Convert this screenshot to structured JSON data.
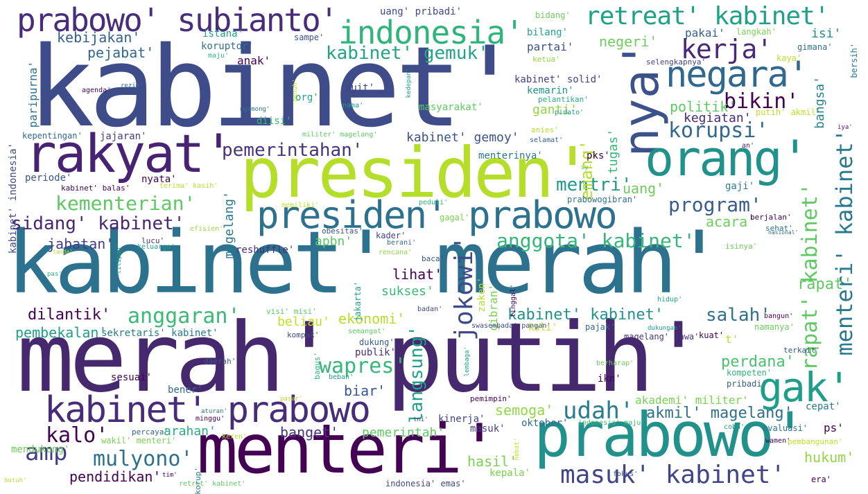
{
  "words": [
    {
      "text": "kabinet'",
      "color": "#3f4c8a"
    },
    {
      "text": "merah' putih'",
      "color": "#46286e"
    },
    {
      "text": "kabinet' merah'",
      "color": "#2c728e"
    },
    {
      "text": "presiden'",
      "color": "#b5de2b"
    },
    {
      "text": "menteri'",
      "color": "#440154"
    },
    {
      "text": "prabowo'",
      "color": "#21918c"
    },
    {
      "text": "rakyat'",
      "color": "#482374"
    },
    {
      "text": "prabowo' subianto'",
      "color": "#472d7b"
    },
    {
      "text": "indonesia'",
      "color": "#2fb47c"
    },
    {
      "text": "nya'",
      "color": "#3b528b"
    },
    {
      "text": "orang'",
      "color": "#21918c"
    },
    {
      "text": "negara'",
      "color": "#31688e"
    },
    {
      "text": "presiden' prabowo",
      "color": "#2c728e"
    },
    {
      "text": "kabinet' prabowo",
      "color": "#472c7a"
    },
    {
      "text": "gak'",
      "color": "#1f9e89"
    },
    {
      "text": "retreat' kabinet'",
      "color": "#1fa187"
    },
    {
      "text": "kerja'",
      "color": "#482878"
    },
    {
      "text": "mentri'",
      "color": "#1f9a8a"
    },
    {
      "text": "kabinet' gemuk'",
      "color": "#20a486"
    },
    {
      "text": "bikin'",
      "color": "#440154"
    },
    {
      "text": "korupsi'",
      "color": "#31688e"
    },
    {
      "text": "pemerintahan'",
      "color": "#46337e"
    },
    {
      "text": "jokowi'",
      "color": "#3e4a89"
    },
    {
      "text": "menteri' kabinet'",
      "color": "#2a788e"
    },
    {
      "text": "rapat' kabinet'",
      "color": "#5ec962"
    },
    {
      "text": "masuk' kabinet'",
      "color": "#414487"
    },
    {
      "text": "kementerian'",
      "color": "#5ec962"
    },
    {
      "text": "sidang' kabinet'",
      "color": "#482576"
    },
    {
      "text": "anggota' kabinet'",
      "color": "#35b779"
    },
    {
      "text": "program'",
      "color": "#365c8d"
    },
    {
      "text": "anggaran'",
      "color": "#3aba76"
    },
    {
      "text": "udah'",
      "color": "#287c8e"
    },
    {
      "text": "mulyono'",
      "color": "#2c728e"
    },
    {
      "text": "amp",
      "color": "#433e85"
    },
    {
      "text": "kalo'",
      "color": "#440154"
    },
    {
      "text": "wapres'",
      "color": "#35b779"
    },
    {
      "text": "langsung'",
      "color": "#1fa187"
    },
    {
      "text": "akmil' magelang'",
      "color": "#2d708e"
    },
    {
      "text": "perdana'",
      "color": "#4ac16d"
    },
    {
      "text": "salah'",
      "color": "#2c738e"
    },
    {
      "text": "kebijakan'",
      "color": "#35608d"
    },
    {
      "text": "pejabat'",
      "color": "#31688e"
    },
    {
      "text": "emang'",
      "color": "#b5de2b"
    },
    {
      "text": "uang'",
      "color": "#6ccd5a"
    },
    {
      "text": "acara'",
      "color": "#6ccd5a"
    },
    {
      "text": "politik'",
      "color": "#5ec962"
    },
    {
      "text": "kegiatan'",
      "color": "#482979"
    },
    {
      "text": "ganti'",
      "color": "#90d743"
    },
    {
      "text": "hukum'",
      "color": "#90d743"
    },
    {
      "text": "pendidikan'",
      "color": "#440154"
    },
    {
      "text": "jabatan'",
      "color": "#433e85"
    },
    {
      "text": "apbn'",
      "color": "#5ec962"
    },
    {
      "text": "dilantik'",
      "color": "#440154"
    },
    {
      "text": "pembekalan'",
      "color": "#1f9e89"
    },
    {
      "text": "ekonomi'",
      "color": "#b5de2b"
    },
    {
      "text": "beliau'",
      "color": "#c2df23"
    },
    {
      "text": "kabinet' kabinet'",
      "color": "#20928c"
    },
    {
      "text": "semoga'",
      "color": "#90d743"
    },
    {
      "text": "pemerintah'",
      "color": "#5ec962"
    },
    {
      "text": "arahan'",
      "color": "#27ad81"
    },
    {
      "text": "banget'",
      "color": "#46337e"
    },
    {
      "text": "hasil'",
      "color": "#7ad151"
    },
    {
      "text": "biar'",
      "color": "#39568c"
    },
    {
      "text": "rapat'",
      "color": "#5ec962"
    },
    {
      "text": "bangsa'",
      "color": "#25838e"
    },
    {
      "text": "tugas'",
      "color": "#35b779"
    },
    {
      "text": "magelang'",
      "color": "#2a788e"
    },
    {
      "text": "lihat'",
      "color": "#440154"
    },
    {
      "text": "sukses'",
      "color": "#3aba76"
    },
    {
      "text": "negeri'",
      "color": "#6ccd5a"
    },
    {
      "text": "kabinet' gemoy'",
      "color": "#3b528b"
    },
    {
      "text": "partai'",
      "color": "#3b528b"
    },
    {
      "text": "anak'",
      "color": "#440154"
    },
    {
      "text": "koruptor'",
      "color": "#2c728e"
    },
    {
      "text": "istana'",
      "color": "#1fa187"
    },
    {
      "text": "bilang'",
      "color": "#20a486"
    },
    {
      "text": "sampe'",
      "color": "#3b528b"
    },
    {
      "text": "uang' pribadi'",
      "color": "#3e4989"
    },
    {
      "text": "bidang'",
      "color": "#6ccd5a"
    },
    {
      "text": "isi'",
      "color": "#228c8d"
    },
    {
      "text": "pakai'",
      "color": "#35608d"
    },
    {
      "text": "langkah'",
      "color": "#7ad151"
    },
    {
      "text": "gimana'",
      "color": "#2c728e"
    },
    {
      "text": "kaya'",
      "color": "#bddf26"
    },
    {
      "text": "bersih'",
      "color": "#29798e"
    },
    {
      "text": "selengkapnya'",
      "color": "#433e85"
    },
    {
      "text": "ketua'",
      "color": "#90d743"
    },
    {
      "text": "kabinet' solid'",
      "color": "#414487"
    },
    {
      "text": "kemarin'",
      "color": "#21918c"
    },
    {
      "text": "pelantikan'",
      "color": "#27ad81"
    },
    {
      "text": "kedepan'",
      "color": "#1fa187"
    },
    {
      "text": "putih' akmil'",
      "color": "#c2df23"
    },
    {
      "text": "masyarakat'",
      "color": "#5ec962"
    },
    {
      "text": "duit'",
      "color": "#414487"
    },
    {
      "text": "nama'",
      "color": "#1f9a8a"
    },
    {
      "text": "org'",
      "color": "#20a386"
    },
    {
      "text": "diisi'",
      "color": "#3aba76"
    },
    {
      "text": "militer' magelang'",
      "color": "#5ec962"
    },
    {
      "text": "anies'",
      "color": "#b5de2b"
    },
    {
      "text": "pidato'",
      "color": "#1f9e89"
    },
    {
      "text": "selamat'",
      "color": "#365c8d"
    },
    {
      "text": "iya'",
      "color": "#481c6e"
    },
    {
      "text": "an'",
      "color": "#481f70"
    },
    {
      "text": "sy'",
      "color": "#5ec962"
    },
    {
      "text": "pks'",
      "color": "#440154"
    },
    {
      "text": "menterinya'",
      "color": "#2a788e"
    },
    {
      "text": "gaji'",
      "color": "#287c8e"
    },
    {
      "text": "prabowogibran'",
      "color": "#2c728e"
    },
    {
      "text": "memiliki'",
      "color": "#c2df23"
    },
    {
      "text": "peduli'",
      "color": "#2fb47c"
    },
    {
      "text": "gagal'",
      "color": "#7ad151"
    },
    {
      "text": "efisien'",
      "color": "#a0da39"
    },
    {
      "text": "kader'",
      "color": "#414487"
    },
    {
      "text": "obesitas'",
      "color": "#3b528b"
    },
    {
      "text": "berani'",
      "color": "#31688e"
    },
    {
      "text": "rencana'",
      "color": "#90d743"
    },
    {
      "text": "baca'",
      "color": "#3b528b"
    },
    {
      "text": "reshuffle'",
      "color": "#472d7b"
    },
    {
      "text": "lucu'",
      "color": "#46337e"
    },
    {
      "text": "keluarga'",
      "color": "#1fa187"
    },
    {
      "text": "tanda'",
      "color": "#b5de2b"
    },
    {
      "text": "titipan'",
      "color": "#1fa187"
    },
    {
      "text": "pas'",
      "color": "#2fb47c"
    },
    {
      "text": "isinya'",
      "color": "#6ccd5a"
    },
    {
      "text": "berjalan'",
      "color": "#440154"
    },
    {
      "text": "sehat'",
      "color": "#2c728e"
    },
    {
      "text": "nasional'",
      "color": "#31688e"
    },
    {
      "text": "zaken'",
      "color": "#b5de2b"
    },
    {
      "text": "gibran'",
      "color": "#7ad151"
    },
    {
      "text": "tinggal'",
      "color": "#440154"
    },
    {
      "text": "jakarta'",
      "color": "#1fa187"
    },
    {
      "text": "visi' misi'",
      "color": "#5ec962"
    },
    {
      "text": "badan'",
      "color": "#3e4989"
    },
    {
      "text": "hidup'",
      "color": "#20a386"
    },
    {
      "text": "bangun'",
      "color": "#440154"
    },
    {
      "text": "namanya'",
      "color": "#6ccd5a"
    },
    {
      "text": "kali'",
      "color": "#bddf26"
    },
    {
      "text": "pajak'",
      "color": "#31688e"
    },
    {
      "text": "magelang' jawa'",
      "color": "#46337e"
    },
    {
      "text": "kuat'",
      "color": "#440154"
    },
    {
      "text": "t'",
      "color": "#b5de2b"
    },
    {
      "text": "sekretaris' kabinet'",
      "color": "#2a788e"
    },
    {
      "text": "kompak'",
      "color": "#3e4989"
    },
    {
      "text": "semangat'",
      "color": "#5ec962"
    },
    {
      "text": "dukung'",
      "color": "#365c8d"
    },
    {
      "text": "publik'",
      "color": "#472d7b"
    },
    {
      "text": "swasembada' pangan'",
      "color": "#3e4989"
    },
    {
      "text": "dukungan'",
      "color": "#1f9e89"
    },
    {
      "text": "lembaga'",
      "color": "#1fa187"
    },
    {
      "text": "bagus'",
      "color": "#2fb47c"
    },
    {
      "text": "beban'",
      "color": "#1fa187"
    },
    {
      "text": "daerah'",
      "color": "#3b528b"
    },
    {
      "text": "sesuai'",
      "color": "#440154"
    },
    {
      "text": "bener'",
      "color": "#31688e"
    },
    {
      "text": "berharap'",
      "color": "#6ccd5a"
    },
    {
      "text": "terkait'",
      "color": "#3b528b"
    },
    {
      "text": "ikn'",
      "color": "#440154"
    },
    {
      "text": "kompeten'",
      "color": "#2fb47c"
    },
    {
      "text": "pribadi'",
      "color": "#365c8d"
    },
    {
      "text": "pemimpin'",
      "color": "#440154"
    },
    {
      "text": "akademi' militer'",
      "color": "#7ad151"
    },
    {
      "text": "cepat'",
      "color": "#2a788e"
    },
    {
      "text": "oktober'",
      "color": "#31688e"
    },
    {
      "text": "indonesia' maju'",
      "color": "#3aba76"
    },
    {
      "text": "ps'",
      "color": "#440154"
    },
    {
      "text": "evaluasi'",
      "color": "#2c728e"
    },
    {
      "text": "coba'",
      "color": "#1f9a8a"
    },
    {
      "text": "kinerja'",
      "color": "#414487"
    },
    {
      "text": "masuk'",
      "color": "#433e85"
    },
    {
      "text": "wamen'",
      "color": "#440154"
    },
    {
      "text": "pembangunan'",
      "color": "#bddf26"
    },
    {
      "text": "hebat'",
      "color": "#bddf26"
    },
    {
      "text": "fokus'",
      "color": "#3b528b"
    },
    {
      "text": "kepala'",
      "color": "#7ad151"
    },
    {
      "text": "era'",
      "color": "#440154"
    },
    {
      "text": "indonesia' emas'",
      "color": "#3e4989"
    },
    {
      "text": "retret' kabinet'",
      "color": "#5ec962"
    },
    {
      "text": "korup'",
      "color": "#29798e"
    },
    {
      "text": "tim'",
      "color": "#440154"
    },
    {
      "text": "butuh'",
      "color": "#bddf26"
    },
    {
      "text": "mendukung'",
      "color": "#6ccd5a"
    },
    {
      "text": "wakil' menteri'",
      "color": "#7ad151"
    },
    {
      "text": "percaya'",
      "color": "#31688e"
    },
    {
      "text": "keren'",
      "color": "#b5de2b"
    },
    {
      "text": "minggu'",
      "color": "#440154"
    },
    {
      "text": "aturan'",
      "color": "#2c728e"
    },
    {
      "text": "tni'",
      "color": "#3b528b"
    },
    {
      "text": "pasar'",
      "color": "#b5de2b"
    },
    {
      "text": "maju'",
      "color": "#2fb47c"
    },
    {
      "text": "agenda'",
      "color": "#440154"
    },
    {
      "text": "rezim'",
      "color": "#2c728e"
    },
    {
      "text": "ngomong'",
      "color": "#2c728e"
    },
    {
      "text": "penuh'",
      "color": "#b5de2b"
    },
    {
      "text": "paripurna'",
      "color": "#2c728e"
    },
    {
      "text": "kepentingan'",
      "color": "#31688e"
    },
    {
      "text": "jajaran'",
      "color": "#433e85"
    },
    {
      "text": "kabinet' indonesia'",
      "color": "#3e4989"
    },
    {
      "text": "periode'",
      "color": "#3b528b"
    },
    {
      "text": "nyata'",
      "color": "#440154"
    },
    {
      "text": "kabinet' balas'",
      "color": "#440154"
    },
    {
      "text": "terima' kasih'",
      "color": "#b5de2b"
    }
  ]
}
